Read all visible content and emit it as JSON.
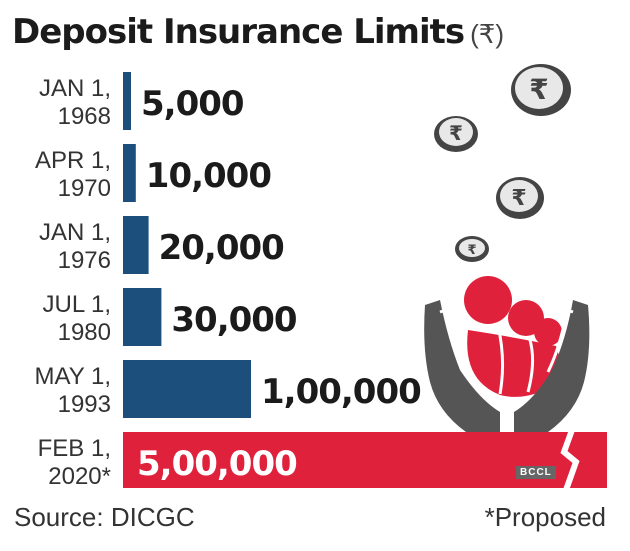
{
  "chart_data": {
    "type": "bar",
    "orientation": "horizontal",
    "title": "Deposit Insurance Limits",
    "unit": "(₹)",
    "categories": [
      [
        "JAN 1,",
        "1968"
      ],
      [
        "APR 1,",
        "1970"
      ],
      [
        "JAN 1,",
        "1976"
      ],
      [
        "JUL 1,",
        "1980"
      ],
      [
        "MAY 1,",
        "1993"
      ],
      [
        "FEB 1,",
        "2020*"
      ]
    ],
    "values": [
      5000,
      10000,
      20000,
      30000,
      100000,
      500000
    ],
    "value_labels": [
      "5,000",
      "10,000",
      "20,000",
      "30,000",
      "1,00,000",
      "5,00,000"
    ],
    "colors": {
      "historical": "#1c4f7c",
      "proposed": "#e0213c",
      "illustration_gray": "#555555"
    },
    "last_bar_axis_break": true
  },
  "footer": {
    "source": "Source: DICGC",
    "note": "*Proposed"
  },
  "watermark": "BCCL"
}
